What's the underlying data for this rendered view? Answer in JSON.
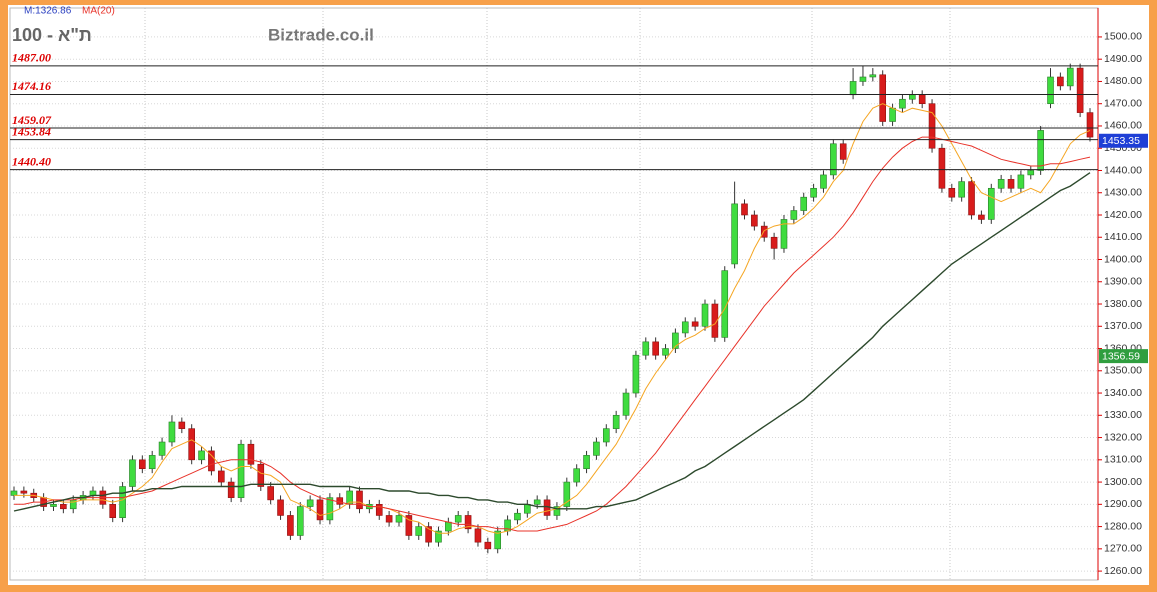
{
  "chart_data": {
    "type": "candlestick",
    "title": "ת\"א - 100",
    "subtitle": "M:1326.86",
    "watermark": "Biztrade.co.il",
    "up_color": "#3fdc3f",
    "down_color": "#d81c1c",
    "open": [
      1294,
      1296,
      1295,
      1293,
      1289,
      1290,
      1288,
      1292,
      1294,
      1296,
      1290,
      1284,
      1298,
      1310,
      1306,
      1312,
      1318,
      1327,
      1324,
      1310,
      1314,
      1305,
      1300,
      1293,
      1317,
      1308,
      1298,
      1292,
      1285,
      1276,
      1289,
      1292,
      1283,
      1293,
      1290,
      1296,
      1288,
      1290,
      1285,
      1282,
      1285,
      1276,
      1280,
      1273,
      1278,
      1282,
      1285,
      1279,
      1273,
      1270,
      1278,
      1283,
      1286,
      1290,
      1292,
      1285,
      1289,
      1300,
      1306,
      1312,
      1318,
      1324,
      1330,
      1340,
      1357,
      1363,
      1357,
      1360,
      1367,
      1372,
      1370,
      1380,
      1365,
      1398,
      1425,
      1420,
      1415,
      1410,
      1405,
      1418,
      1422,
      1428,
      1432,
      1438,
      1452,
      1474,
      1480,
      1482,
      1483,
      1462,
      1468,
      1472,
      1474,
      1470,
      1450,
      1432,
      1428,
      1435,
      1420,
      1418,
      1432,
      1436,
      1432,
      1438,
      1440,
      1470,
      1482,
      1478,
      1486,
      1466
    ],
    "high": [
      1298,
      1298,
      1297,
      1295,
      1292,
      1292,
      1294,
      1296,
      1298,
      1298,
      1292,
      1300,
      1312,
      1312,
      1314,
      1320,
      1330,
      1329,
      1326,
      1316,
      1316,
      1307,
      1302,
      1319,
      1319,
      1310,
      1300,
      1294,
      1287,
      1291,
      1294,
      1294,
      1295,
      1295,
      1298,
      1298,
      1292,
      1292,
      1287,
      1287,
      1287,
      1282,
      1282,
      1280,
      1284,
      1287,
      1287,
      1281,
      1275,
      1280,
      1285,
      1288,
      1292,
      1294,
      1294,
      1291,
      1302,
      1308,
      1314,
      1320,
      1326,
      1332,
      1342,
      1359,
      1365,
      1365,
      1362,
      1369,
      1374,
      1374,
      1382,
      1382,
      1397,
      1435,
      1427,
      1422,
      1417,
      1412,
      1420,
      1424,
      1430,
      1434,
      1440,
      1454,
      1454,
      1486,
      1487,
      1486,
      1485,
      1470,
      1474,
      1476,
      1476,
      1472,
      1452,
      1434,
      1437,
      1437,
      1422,
      1434,
      1438,
      1438,
      1440,
      1442,
      1460,
      1486,
      1484,
      1488,
      1488,
      1468
    ],
    "low": [
      1292,
      1293,
      1291,
      1287,
      1287,
      1286,
      1286,
      1290,
      1292,
      1288,
      1282,
      1282,
      1296,
      1304,
      1304,
      1310,
      1316,
      1322,
      1308,
      1308,
      1303,
      1298,
      1291,
      1291,
      1306,
      1296,
      1290,
      1283,
      1274,
      1274,
      1287,
      1281,
      1281,
      1288,
      1288,
      1286,
      1286,
      1283,
      1280,
      1280,
      1274,
      1274,
      1271,
      1271,
      1276,
      1280,
      1277,
      1271,
      1268,
      1268,
      1276,
      1281,
      1284,
      1288,
      1283,
      1283,
      1287,
      1298,
      1304,
      1310,
      1316,
      1322,
      1328,
      1338,
      1355,
      1355,
      1355,
      1358,
      1365,
      1368,
      1368,
      1363,
      1363,
      1396,
      1418,
      1413,
      1408,
      1400,
      1403,
      1416,
      1420,
      1426,
      1430,
      1436,
      1443,
      1472,
      1478,
      1480,
      1460,
      1460,
      1466,
      1470,
      1468,
      1448,
      1430,
      1426,
      1426,
      1418,
      1416,
      1416,
      1430,
      1430,
      1430,
      1436,
      1438,
      1468,
      1476,
      1476,
      1464,
      1453
    ],
    "close": [
      1296,
      1295,
      1293,
      1289,
      1290,
      1288,
      1292,
      1294,
      1296,
      1290,
      1284,
      1298,
      1310,
      1306,
      1312,
      1318,
      1327,
      1324,
      1310,
      1314,
      1305,
      1300,
      1293,
      1317,
      1308,
      1298,
      1292,
      1285,
      1276,
      1289,
      1292,
      1283,
      1293,
      1290,
      1296,
      1288,
      1290,
      1285,
      1282,
      1285,
      1276,
      1280,
      1273,
      1278,
      1282,
      1285,
      1279,
      1273,
      1270,
      1278,
      1283,
      1286,
      1290,
      1292,
      1285,
      1289,
      1300,
      1306,
      1312,
      1318,
      1324,
      1330,
      1340,
      1357,
      1363,
      1357,
      1360,
      1367,
      1372,
      1370,
      1380,
      1365,
      1395,
      1425,
      1420,
      1415,
      1410,
      1405,
      1418,
      1422,
      1428,
      1432,
      1438,
      1452,
      1445,
      1480,
      1482,
      1483,
      1462,
      1468,
      1472,
      1474,
      1470,
      1450,
      1432,
      1428,
      1435,
      1420,
      1418,
      1432,
      1436,
      1432,
      1438,
      1440,
      1458,
      1482,
      1478,
      1486,
      1466,
      1455
    ],
    "series": [
      {
        "color": "#f5a623",
        "values": [
          1294,
          1294,
          1294,
          1293,
          1292,
          1291,
          1291,
          1292,
          1292,
          1292,
          1291,
          1292,
          1295,
          1298,
          1302,
          1309,
          1315,
          1317,
          1319,
          1316,
          1312,
          1307,
          1305,
          1307,
          1307,
          1304,
          1303,
          1300,
          1292,
          1290,
          1288,
          1285,
          1286,
          1288,
          1291,
          1291,
          1289,
          1289,
          1288,
          1286,
          1283,
          1282,
          1279,
          1277,
          1277,
          1279,
          1280,
          1280,
          1278,
          1277,
          1278,
          1280,
          1283,
          1286,
          1287,
          1288,
          1291,
          1294,
          1299,
          1305,
          1311,
          1317,
          1325,
          1333,
          1342,
          1349,
          1355,
          1361,
          1364,
          1366,
          1369,
          1371,
          1378,
          1387,
          1395,
          1405,
          1413,
          1415,
          1416,
          1416,
          1419,
          1423,
          1428,
          1435,
          1440,
          1452,
          1462,
          1468,
          1470,
          1468,
          1466,
          1468,
          1467,
          1466,
          1460,
          1452,
          1444,
          1436,
          1430,
          1428,
          1426,
          1428,
          1430,
          1432,
          1430,
          1436,
          1444,
          1452,
          1456,
          1458
        ]
      },
      {
        "name": "MA(20)",
        "color": "#e8332a",
        "values": [
          1290,
          1290,
          1291,
          1291,
          1292,
          1292,
          1292,
          1293,
          1293,
          1293,
          1293,
          1293,
          1294,
          1295,
          1296,
          1298,
          1300,
          1302,
          1304,
          1306,
          1308,
          1309,
          1310,
          1310,
          1310,
          1309,
          1307,
          1304,
          1300,
          1297,
          1295,
          1293,
          1292,
          1291,
          1290,
          1290,
          1289,
          1289,
          1288,
          1287,
          1286,
          1285,
          1284,
          1283,
          1282,
          1281,
          1281,
          1280,
          1280,
          1279,
          1279,
          1278,
          1278,
          1278,
          1279,
          1280,
          1281,
          1283,
          1285,
          1287,
          1290,
          1294,
          1298,
          1303,
          1308,
          1313,
          1319,
          1325,
          1331,
          1337,
          1343,
          1349,
          1355,
          1361,
          1367,
          1373,
          1379,
          1384,
          1389,
          1394,
          1398,
          1402,
          1406,
          1410,
          1415,
          1421,
          1428,
          1435,
          1441,
          1446,
          1450,
          1453,
          1455,
          1455,
          1454,
          1453,
          1452,
          1451,
          1449,
          1447,
          1445,
          1444,
          1443,
          1442,
          1442,
          1443,
          1443,
          1444,
          1445,
          1446
        ]
      },
      {
        "color": "#2d4a2d",
        "values": [
          1287,
          1288,
          1289,
          1290,
          1291,
          1292,
          1293,
          1293,
          1294,
          1294,
          1295,
          1295,
          1296,
          1296,
          1297,
          1297,
          1297,
          1298,
          1298,
          1298,
          1298,
          1298,
          1298,
          1298,
          1299,
          1299,
          1299,
          1299,
          1299,
          1299,
          1299,
          1298,
          1298,
          1298,
          1298,
          1297,
          1297,
          1297,
          1296,
          1296,
          1296,
          1295,
          1295,
          1294,
          1294,
          1293,
          1293,
          1292,
          1292,
          1291,
          1291,
          1290,
          1290,
          1289,
          1289,
          1288,
          1288,
          1288,
          1288,
          1289,
          1289,
          1290,
          1291,
          1292,
          1294,
          1296,
          1298,
          1300,
          1302,
          1305,
          1307,
          1310,
          1313,
          1316,
          1319,
          1322,
          1325,
          1328,
          1331,
          1334,
          1337,
          1341,
          1345,
          1349,
          1353,
          1357,
          1361,
          1365,
          1370,
          1374,
          1378,
          1382,
          1386,
          1390,
          1394,
          1398,
          1401,
          1404,
          1407,
          1410,
          1413,
          1416,
          1419,
          1422,
          1425,
          1428,
          1431,
          1433,
          1436,
          1439
        ]
      }
    ],
    "levels": [
      {
        "value": 1487,
        "label": "1487.00"
      },
      1474.16,
      1459.07,
      1453.84,
      {
        "value": 1440.4,
        "label": "1440.40"
      }
    ],
    "price_tags": [
      1453.35,
      1356.59
    ],
    "price_tag_colors": [
      "#1f3fd6",
      "#2f9e3f"
    ],
    "ylim": [
      1256,
      1513
    ],
    "yticks": [
      {
        "value": 1260,
        "label": "1260.00"
      },
      {
        "value": 1270,
        "label": "1270.00"
      },
      {
        "value": 1280,
        "label": "1280.00"
      },
      {
        "value": 1290,
        "label": "1290.00"
      },
      {
        "value": 1300,
        "label": "1300.00"
      },
      {
        "value": 1310,
        "label": "1310.00"
      },
      {
        "value": 1320,
        "label": "1320.00"
      },
      {
        "value": 1330,
        "label": "1330.00"
      },
      {
        "value": 1340,
        "label": "1340.00"
      },
      {
        "value": 1350,
        "label": "1350.00"
      },
      {
        "value": 1360,
        "label": "1360.00"
      },
      {
        "value": 1370,
        "label": "1370.00"
      },
      {
        "value": 1380,
        "label": "1380.00"
      },
      {
        "value": 1390,
        "label": "1390.00"
      },
      {
        "value": 1400,
        "label": "1400.00"
      },
      {
        "value": 1410,
        "label": "1410.00"
      },
      {
        "value": 1420,
        "label": "1420.00"
      },
      {
        "value": 1430,
        "label": "1430.00"
      },
      {
        "value": 1440,
        "label": "1440.00"
      },
      {
        "value": 1450,
        "label": "1450.00"
      },
      {
        "value": 1460,
        "label": "1460.00"
      },
      {
        "value": 1470,
        "label": "1470.00"
      },
      {
        "value": 1480,
        "label": "1480.00"
      },
      {
        "value": 1490,
        "label": "1490.00"
      },
      {
        "value": 1500,
        "label": "1500.00"
      }
    ],
    "grid": true
  }
}
